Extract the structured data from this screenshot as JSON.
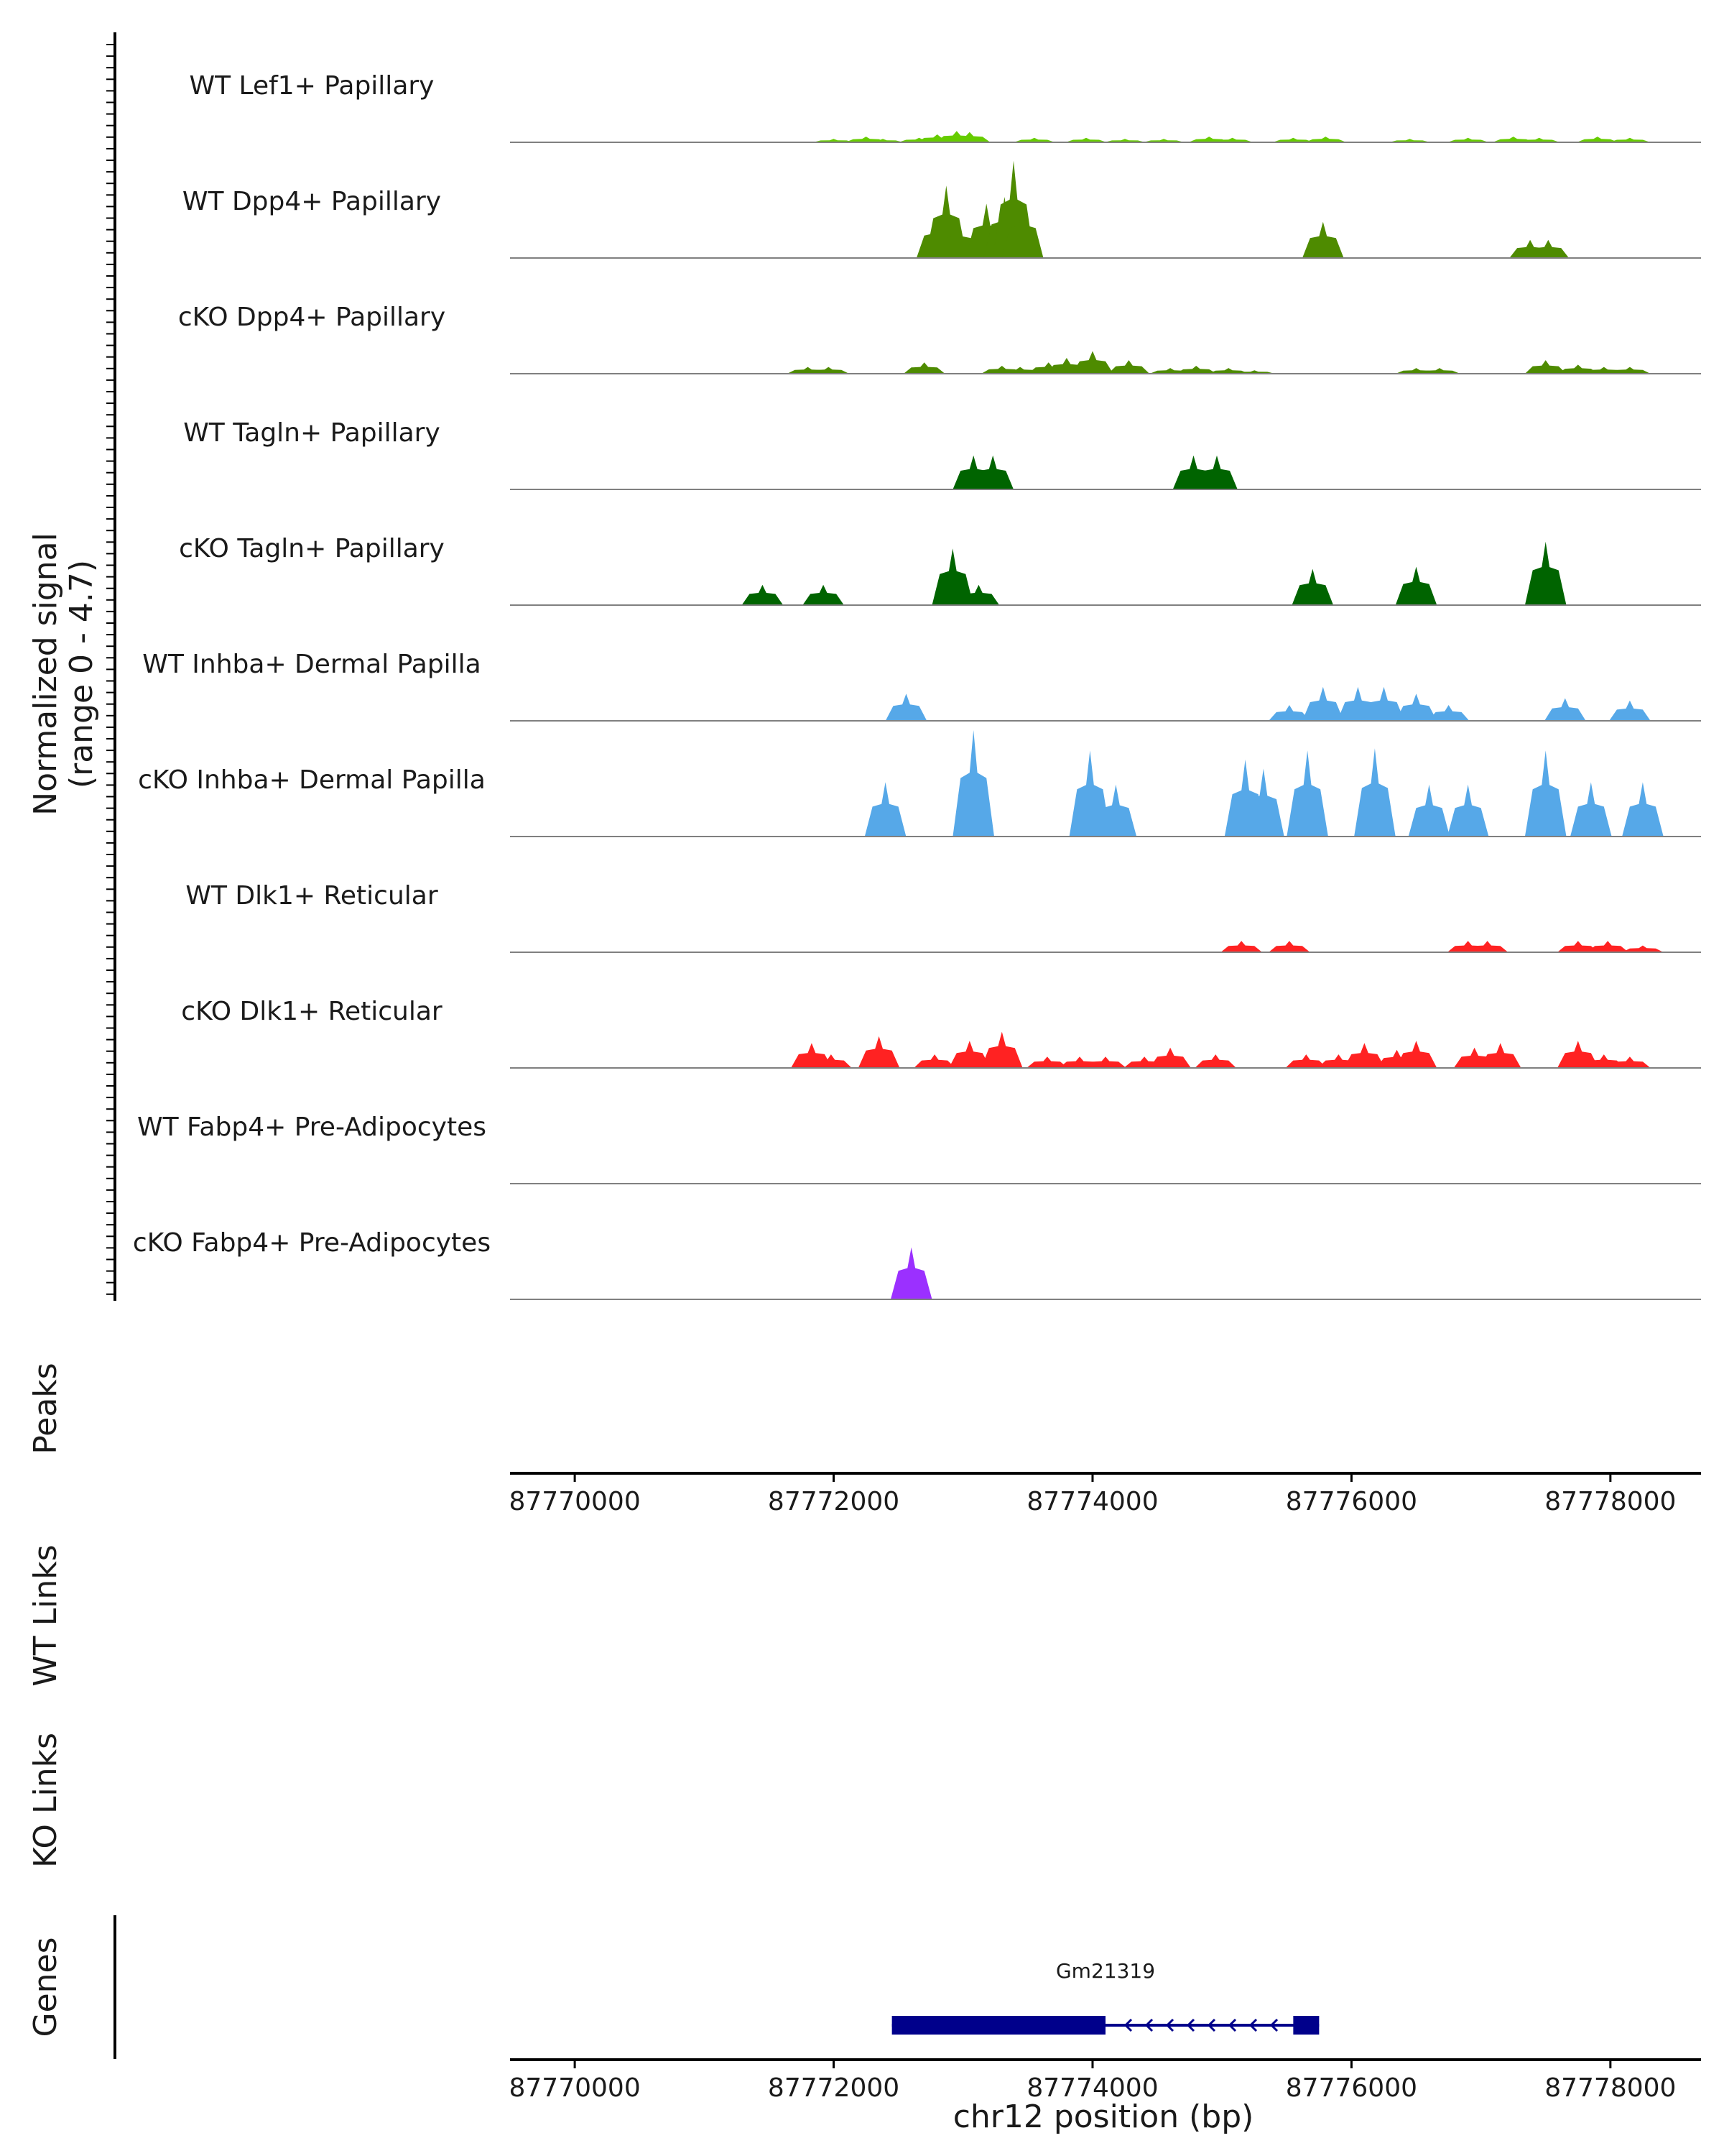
{
  "chart_data": {
    "type": "coverage_tracks",
    "chromosome": "chr12",
    "xlim": [
      87769500,
      87778700
    ],
    "xticks": [
      87770000,
      87772000,
      87774000,
      87776000,
      87778000
    ],
    "xtick_labels": [
      "87770000",
      "87772000",
      "87774000",
      "87776000",
      "87778000"
    ],
    "xlabel": "chr12 position (bp)",
    "ylabel_line1": "Normalized signal",
    "ylabel_line2": "(range 0 - 4.7)",
    "ylim": [
      0,
      4.7
    ],
    "panel_labels": {
      "peaks": "Peaks",
      "wt_links": "WT Links",
      "ko_links": "KO Links",
      "genes": "Genes"
    },
    "tracks": [
      {
        "name": "WT Lef1+ Papillary",
        "color": "#66cc00",
        "points": [
          [
            87772000,
            0.15
          ],
          [
            87772250,
            0.25
          ],
          [
            87772380,
            0.15
          ],
          [
            87772660,
            0.2
          ],
          [
            87772800,
            0.35
          ],
          [
            87772950,
            0.5
          ],
          [
            87773050,
            0.45
          ],
          [
            87773550,
            0.2
          ],
          [
            87773950,
            0.2
          ],
          [
            87774250,
            0.15
          ],
          [
            87774550,
            0.15
          ],
          [
            87774900,
            0.25
          ],
          [
            87775080,
            0.2
          ],
          [
            87775550,
            0.2
          ],
          [
            87775800,
            0.25
          ],
          [
            87776450,
            0.15
          ],
          [
            87776900,
            0.2
          ],
          [
            87777250,
            0.25
          ],
          [
            87777450,
            0.2
          ],
          [
            87777900,
            0.25
          ],
          [
            87778150,
            0.2
          ]
        ]
      },
      {
        "name": "WT Dpp4+ Papillary",
        "color": "#4e8b00",
        "points": [
          [
            87772800,
            1.8
          ],
          [
            87772870,
            3.2
          ],
          [
            87772960,
            1.6
          ],
          [
            87773180,
            2.4
          ],
          [
            87773320,
            2.7
          ],
          [
            87773390,
            4.3
          ],
          [
            87773460,
            2.4
          ],
          [
            87775780,
            1.6
          ],
          [
            87777380,
            0.8
          ],
          [
            87777520,
            0.8
          ]
        ]
      },
      {
        "name": "cKO Dpp4+ Papillary",
        "color": "#4e8b00",
        "points": [
          [
            87771800,
            0.3
          ],
          [
            87771960,
            0.3
          ],
          [
            87772700,
            0.5
          ],
          [
            87773300,
            0.35
          ],
          [
            87773440,
            0.3
          ],
          [
            87773660,
            0.5
          ],
          [
            87773800,
            0.7
          ],
          [
            87774000,
            1.0
          ],
          [
            87774280,
            0.6
          ],
          [
            87774600,
            0.25
          ],
          [
            87774800,
            0.35
          ],
          [
            87775050,
            0.25
          ],
          [
            87775250,
            0.15
          ],
          [
            87776500,
            0.25
          ],
          [
            87776680,
            0.25
          ],
          [
            87777500,
            0.6
          ],
          [
            87777750,
            0.4
          ],
          [
            87777950,
            0.3
          ],
          [
            87778150,
            0.3
          ]
        ]
      },
      {
        "name": "WT Tagln+ Papillary",
        "color": "#006400",
        "points": [
          [
            87773080,
            1.5
          ],
          [
            87773230,
            1.5
          ],
          [
            87774780,
            1.5
          ],
          [
            87774960,
            1.5
          ]
        ]
      },
      {
        "name": "cKO Tagln+ Papillary",
        "color": "#006400",
        "points": [
          [
            87771450,
            0.9
          ],
          [
            87771920,
            0.9
          ],
          [
            87772920,
            2.5
          ],
          [
            87773120,
            0.9
          ],
          [
            87775700,
            1.6
          ],
          [
            87776500,
            1.7
          ],
          [
            87777500,
            2.8
          ]
        ]
      },
      {
        "name": "WT Inhba+ Dermal Papilla",
        "color": "#56a8e8",
        "points": [
          [
            87772560,
            1.2
          ],
          [
            87775520,
            0.7
          ],
          [
            87775780,
            1.5
          ],
          [
            87776050,
            1.5
          ],
          [
            87776250,
            1.5
          ],
          [
            87776500,
            1.2
          ],
          [
            87776750,
            0.7
          ],
          [
            87777650,
            1.0
          ],
          [
            87778150,
            0.9
          ]
        ]
      },
      {
        "name": "cKO Inhba+ Dermal Papilla",
        "color": "#56a8e8",
        "points": [
          [
            87772400,
            2.4
          ],
          [
            87773080,
            4.7
          ],
          [
            87773980,
            3.8
          ],
          [
            87774180,
            2.3
          ],
          [
            87775180,
            3.4
          ],
          [
            87775320,
            3.0
          ],
          [
            87775660,
            3.8
          ],
          [
            87776180,
            3.9
          ],
          [
            87776600,
            2.3
          ],
          [
            87776900,
            2.3
          ],
          [
            87777500,
            3.8
          ],
          [
            87777850,
            2.4
          ],
          [
            87778250,
            2.4
          ]
        ]
      },
      {
        "name": "WT Dlk1+ Reticular",
        "color": "#ff2222",
        "points": [
          [
            87775150,
            0.5
          ],
          [
            87775520,
            0.5
          ],
          [
            87776900,
            0.5
          ],
          [
            87777050,
            0.5
          ],
          [
            87777750,
            0.5
          ],
          [
            87777980,
            0.5
          ],
          [
            87778250,
            0.3
          ]
        ]
      },
      {
        "name": "cKO Dlk1+ Reticular",
        "color": "#ff2222",
        "points": [
          [
            87771830,
            1.1
          ],
          [
            87771980,
            0.6
          ],
          [
            87772350,
            1.4
          ],
          [
            87772780,
            0.6
          ],
          [
            87773050,
            1.2
          ],
          [
            87773300,
            1.6
          ],
          [
            87773650,
            0.5
          ],
          [
            87773900,
            0.5
          ],
          [
            87774100,
            0.5
          ],
          [
            87774400,
            0.5
          ],
          [
            87774600,
            0.9
          ],
          [
            87774950,
            0.6
          ],
          [
            87775650,
            0.6
          ],
          [
            87775900,
            0.6
          ],
          [
            87776100,
            1.1
          ],
          [
            87776350,
            0.8
          ],
          [
            87776500,
            1.2
          ],
          [
            87776950,
            0.9
          ],
          [
            87777150,
            1.1
          ],
          [
            87777750,
            1.2
          ],
          [
            87777950,
            0.6
          ],
          [
            87778150,
            0.5
          ]
        ]
      },
      {
        "name": "WT Fabp4+ Pre-Adipocytes",
        "color": "#9b30ff",
        "points": []
      },
      {
        "name": "cKO Fabp4+ Pre-Adipocytes",
        "color": "#9b30ff",
        "points": [
          [
            87772600,
            2.3
          ]
        ]
      }
    ],
    "gene": {
      "name": "Gm21319",
      "start": 87772450,
      "end": 87775750,
      "thick_end": 87774100,
      "strand": "-",
      "color": "#00008b"
    }
  }
}
